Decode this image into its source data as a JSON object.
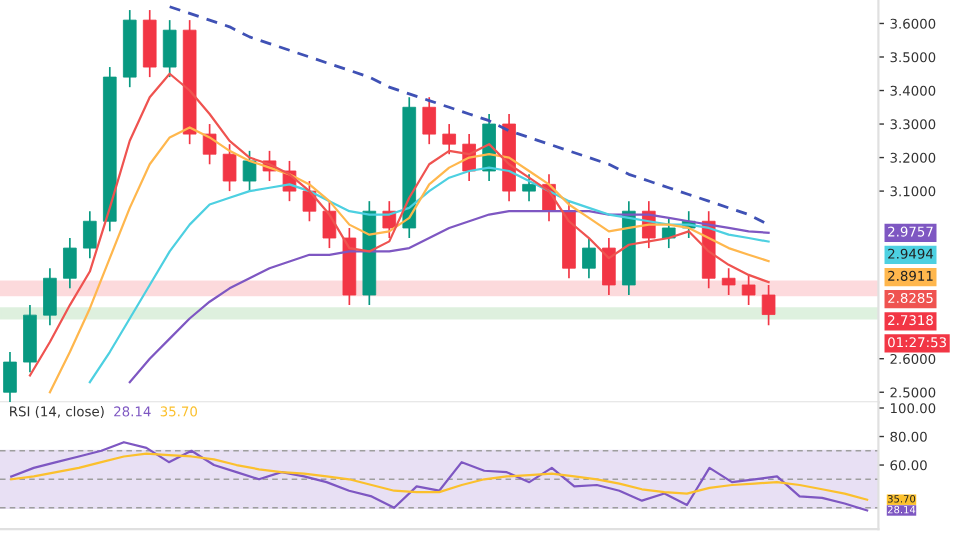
{
  "chart_data": [
    {
      "type": "candlestick",
      "tick_labels": "y",
      "categories": [
        null,
        null,
        null,
        null,
        null,
        null,
        null,
        null,
        null,
        null,
        null,
        null,
        null,
        null,
        null,
        null,
        null,
        null,
        null,
        null,
        null,
        null,
        null,
        null,
        null,
        null,
        null,
        null,
        null,
        null,
        null,
        null,
        null,
        null,
        null,
        null,
        null,
        null,
        null
      ],
      "ohlc": [
        [
          2.5,
          2.62,
          2.47,
          2.59
        ],
        [
          2.59,
          2.76,
          2.56,
          2.73
        ],
        [
          2.73,
          2.87,
          2.7,
          2.84
        ],
        [
          2.84,
          2.96,
          2.81,
          2.93
        ],
        [
          2.93,
          3.04,
          2.9,
          3.01
        ],
        [
          3.01,
          3.47,
          2.98,
          3.44
        ],
        [
          3.44,
          3.64,
          3.41,
          3.61
        ],
        [
          3.61,
          3.64,
          3.44,
          3.47
        ],
        [
          3.47,
          3.61,
          3.44,
          3.58
        ],
        [
          3.58,
          3.61,
          3.24,
          3.27
        ],
        [
          3.27,
          3.3,
          3.18,
          3.21
        ],
        [
          3.21,
          3.24,
          3.1,
          3.13
        ],
        [
          3.13,
          3.22,
          3.1,
          3.19
        ],
        [
          3.19,
          3.22,
          3.13,
          3.16
        ],
        [
          3.16,
          3.19,
          3.07,
          3.1
        ],
        [
          3.1,
          3.13,
          3.01,
          3.04
        ],
        [
          3.04,
          3.07,
          2.93,
          2.96
        ],
        [
          2.96,
          2.99,
          2.76,
          2.79
        ],
        [
          2.79,
          3.07,
          2.76,
          3.04
        ],
        [
          3.04,
          3.07,
          2.96,
          2.99
        ],
        [
          2.99,
          3.38,
          2.96,
          3.35
        ],
        [
          3.35,
          3.38,
          3.24,
          3.27
        ],
        [
          3.27,
          3.3,
          3.21,
          3.24
        ],
        [
          3.24,
          3.27,
          3.13,
          3.16
        ],
        [
          3.16,
          3.33,
          3.13,
          3.3
        ],
        [
          3.3,
          3.33,
          3.07,
          3.1
        ],
        [
          3.1,
          3.15,
          3.07,
          3.12
        ],
        [
          3.12,
          3.15,
          3.01,
          3.04
        ],
        [
          3.04,
          3.07,
          2.84,
          2.87
        ],
        [
          2.87,
          2.96,
          2.84,
          2.93
        ],
        [
          2.93,
          2.96,
          2.79,
          2.82
        ],
        [
          2.82,
          3.07,
          2.79,
          3.04
        ],
        [
          3.04,
          3.07,
          2.93,
          2.96
        ],
        [
          2.96,
          3.02,
          2.93,
          2.99
        ],
        [
          2.99,
          3.04,
          2.96,
          3.01
        ],
        [
          3.01,
          3.04,
          2.81,
          2.84
        ],
        [
          2.84,
          2.87,
          2.79,
          2.82
        ],
        [
          2.82,
          2.85,
          2.76,
          2.79
        ],
        [
          2.79,
          2.82,
          2.7,
          2.7318
        ]
      ],
      "series": [
        {
          "type": "line",
          "color": "#7e57c2",
          "values": [
            null,
            null,
            null,
            null,
            null,
            null,
            2.53,
            2.6,
            2.66,
            2.72,
            2.77,
            2.81,
            2.84,
            2.87,
            2.89,
            2.91,
            2.91,
            2.92,
            2.92,
            2.92,
            2.93,
            2.96,
            2.99,
            3.01,
            3.03,
            3.04,
            3.04,
            3.04,
            3.04,
            3.04,
            3.03,
            3.03,
            3.03,
            3.02,
            3.01,
            3.0,
            2.99,
            2.98,
            2.9757
          ]
        },
        {
          "type": "line",
          "color": "#4dd0e1",
          "values": [
            null,
            null,
            null,
            null,
            2.53,
            2.62,
            2.72,
            2.82,
            2.92,
            3.0,
            3.06,
            3.08,
            3.1,
            3.11,
            3.12,
            3.1,
            3.07,
            3.04,
            3.03,
            3.03,
            3.05,
            3.1,
            3.14,
            3.16,
            3.17,
            3.16,
            3.13,
            3.1,
            3.07,
            3.05,
            3.03,
            3.02,
            3.01,
            3.0,
            3.0,
            2.99,
            2.97,
            2.96,
            2.9494
          ]
        },
        {
          "type": "line",
          "color": "#ffb74d",
          "values": [
            null,
            null,
            2.5,
            2.62,
            2.75,
            2.9,
            3.05,
            3.18,
            3.26,
            3.29,
            3.26,
            3.22,
            3.19,
            3.17,
            3.15,
            3.12,
            3.07,
            3.0,
            2.97,
            2.98,
            3.02,
            3.12,
            3.17,
            3.2,
            3.21,
            3.2,
            3.16,
            3.12,
            3.06,
            3.02,
            2.98,
            2.99,
            3.0,
            3.0,
            2.99,
            2.96,
            2.93,
            2.91,
            2.8911
          ]
        },
        {
          "type": "line",
          "color": "#ef5350",
          "values": [
            null,
            2.55,
            2.65,
            2.76,
            2.86,
            3.05,
            3.25,
            3.38,
            3.45,
            3.4,
            3.33,
            3.25,
            3.2,
            3.18,
            3.15,
            3.1,
            3.03,
            2.93,
            2.92,
            2.95,
            3.08,
            3.18,
            3.22,
            3.21,
            3.24,
            3.18,
            3.14,
            3.1,
            3.01,
            2.96,
            2.9,
            2.94,
            2.95,
            2.96,
            2.98,
            2.92,
            2.88,
            2.85,
            2.8285
          ]
        },
        {
          "type": "line",
          "color": "#3f51b5",
          "line_style": "dashed",
          "values": [
            null,
            null,
            null,
            null,
            null,
            null,
            null,
            null,
            3.65,
            3.63,
            3.61,
            3.59,
            3.56,
            3.54,
            3.52,
            3.5,
            3.48,
            3.46,
            3.44,
            3.41,
            3.39,
            3.37,
            3.35,
            3.33,
            3.31,
            3.28,
            3.26,
            3.24,
            3.22,
            3.2,
            3.18,
            3.15,
            3.13,
            3.11,
            3.09,
            3.07,
            3.05,
            3.03,
            3.0
          ]
        }
      ],
      "bands": [
        {
          "axis": "y",
          "from": 2.79,
          "to": 2.83,
          "color": "#f23645"
        },
        {
          "axis": "y",
          "from": 2.72,
          "to": 2.75,
          "color": "#4caf50"
        }
      ],
      "ylim": [
        2.47,
        3.67
      ],
      "yticks": [
        {
          "value": 2.5,
          "label": "2.5000"
        },
        {
          "value": 2.6,
          "label": "2.6000"
        },
        {
          "value": 3.1,
          "label": "3.1000"
        },
        {
          "value": 3.2,
          "label": "3.2000"
        },
        {
          "value": 3.3,
          "label": "3.3000"
        },
        {
          "value": 3.4,
          "label": "3.4000"
        },
        {
          "value": 3.5,
          "label": "3.5000"
        },
        {
          "value": 3.6,
          "label": "3.6000"
        }
      ],
      "annotations": [
        "2.9757",
        "2.9494",
        "2.8911",
        "2.8285",
        "2.7318",
        "01:27:53"
      ]
    },
    {
      "type": "line",
      "title": "RSI (14, close)",
      "tick_labels": "y",
      "categories": [
        null,
        null,
        null,
        null,
        null,
        null,
        null,
        null,
        null,
        null,
        null,
        null,
        null,
        null,
        null,
        null,
        null,
        null,
        null,
        null,
        null,
        null,
        null,
        null,
        null,
        null,
        null,
        null,
        null,
        null,
        null,
        null,
        null,
        null,
        null,
        null,
        null,
        null,
        null
      ],
      "series": [
        {
          "color": "#7e57c2",
          "values": [
            52,
            58,
            62,
            66,
            70,
            76,
            72,
            62,
            70,
            60,
            55,
            50,
            55,
            52,
            48,
            42,
            38,
            30,
            45,
            42,
            62,
            56,
            55,
            48,
            58,
            45,
            46,
            42,
            35,
            40,
            32,
            58,
            48,
            50,
            52,
            38,
            37,
            33,
            28.14
          ]
        },
        {
          "color": "#fbc02d",
          "values": [
            50,
            52,
            55,
            58,
            62,
            66,
            68,
            67,
            66,
            64,
            60,
            57,
            55,
            54,
            52,
            50,
            46,
            42,
            41,
            41,
            46,
            50,
            52,
            53,
            54,
            52,
            50,
            47,
            43,
            41,
            40,
            44,
            46,
            47,
            48,
            46,
            43,
            40,
            35.7
          ]
        }
      ],
      "bands": [
        {
          "axis": "y",
          "from": 30,
          "to": 70,
          "color": "#7e57c2"
        }
      ],
      "ref_lines": [
        {
          "axis": "y",
          "value": 70,
          "line_style": "dashed"
        },
        {
          "axis": "y",
          "value": 50,
          "line_style": "dashed"
        },
        {
          "axis": "y",
          "value": 30,
          "line_style": "dashed"
        }
      ],
      "ylim": [
        15,
        104
      ],
      "yticks": [
        {
          "value": 60,
          "label": "60.00"
        },
        {
          "value": 80,
          "label": "80.00"
        },
        {
          "value": 100,
          "label": "100.00"
        }
      ],
      "annotations": [
        "28.14",
        "35.70",
        "35.70",
        "28.14"
      ]
    }
  ]
}
